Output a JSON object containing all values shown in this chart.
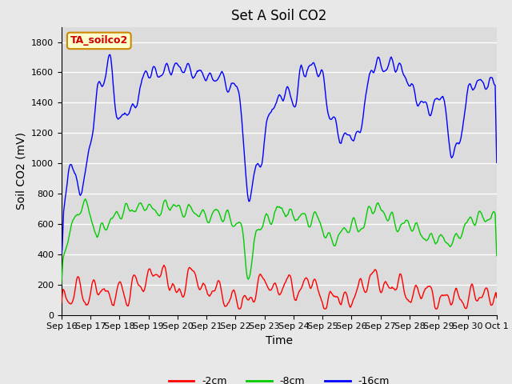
{
  "title": "Set A Soil CO2",
  "ylabel": "Soil CO2 (mV)",
  "xlabel": "Time",
  "legend_label_box": "TA_soilco2",
  "legend_entries": [
    "-2cm",
    "-8cm",
    "-16cm"
  ],
  "line_colors": [
    "#ff0000",
    "#00cc00",
    "#0000ff"
  ],
  "ylim": [
    0,
    1900
  ],
  "yticks": [
    0,
    200,
    400,
    600,
    800,
    1000,
    1200,
    1400,
    1600,
    1800
  ],
  "background_color": "#e8e8e8",
  "plot_bg_color": "#dcdcdc",
  "grid_color": "#ffffff",
  "days": 15.5,
  "xtick_labels": [
    "Sep 16",
    "Sep 17",
    "Sep 18",
    "Sep 19",
    "Sep 20",
    "Sep 21",
    "Sep 22",
    "Sep 23",
    "Sep 24",
    "Sep 25",
    "Sep 26",
    "Sep 27",
    "Sep 28",
    "Sep 29",
    "Sep 30",
    "Oct 1"
  ],
  "title_fontsize": 12,
  "axis_fontsize": 10,
  "tick_fontsize": 8,
  "legend_box_color": "#ffffcc",
  "legend_box_border": "#cc8800",
  "legend_label_color": "#cc0000"
}
